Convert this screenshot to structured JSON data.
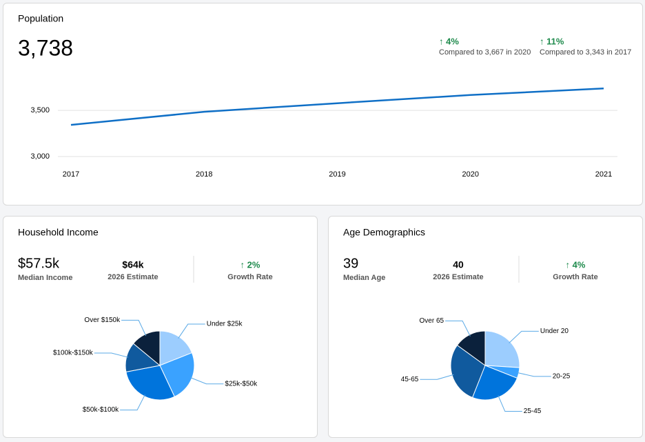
{
  "population": {
    "title": "Population",
    "value": "3,738",
    "comparisons": [
      {
        "change": "↑ 4%",
        "text": "Compared to 3,667 in 2020"
      },
      {
        "change": "↑ 11%",
        "text": "Compared to 3,343 in 2017"
      }
    ]
  },
  "income": {
    "title": "Household Income",
    "stats": [
      {
        "value": "$57.5k",
        "label": "Median Income"
      },
      {
        "value": "$64k",
        "label": "2026 Estimate"
      },
      {
        "value": "↑ 2%",
        "label": "Growth Rate"
      }
    ]
  },
  "age": {
    "title": "Age Demographics",
    "stats": [
      {
        "value": "39",
        "label": "Median Age"
      },
      {
        "value": "40",
        "label": "2026 Estimate"
      },
      {
        "value": "↑ 4%",
        "label": "Growth Rate"
      }
    ]
  },
  "chart_data": [
    {
      "type": "line",
      "categories": [
        "2017",
        "2018",
        "2019",
        "2020",
        "2021"
      ],
      "values": [
        3343,
        3485,
        3578,
        3667,
        3738
      ],
      "color": "#0f6fc6",
      "ylim": [
        3000,
        3800
      ],
      "yticks": [
        {
          "value": 3000,
          "label": "3,000"
        },
        {
          "value": 3500,
          "label": "3,500"
        }
      ],
      "grid": true
    },
    {
      "type": "pie",
      "categories": [
        "Under $25k",
        "$25k-$50k",
        "$50k-$100k",
        "$100k-$150k",
        "Over $150k"
      ],
      "values": [
        19,
        24,
        29,
        14,
        14
      ],
      "colors": [
        "#9ccdfe",
        "#3aa2ff",
        "#0074dc",
        "#105a9e",
        "#0b213c"
      ]
    },
    {
      "type": "pie",
      "categories": [
        "Under 20",
        "20-25",
        "25-45",
        "45-65",
        "Over 65"
      ],
      "values": [
        26,
        5,
        25,
        29,
        15
      ],
      "colors": [
        "#9ccdfe",
        "#3aa2ff",
        "#0074dc",
        "#105a9e",
        "#0b213c"
      ]
    }
  ]
}
